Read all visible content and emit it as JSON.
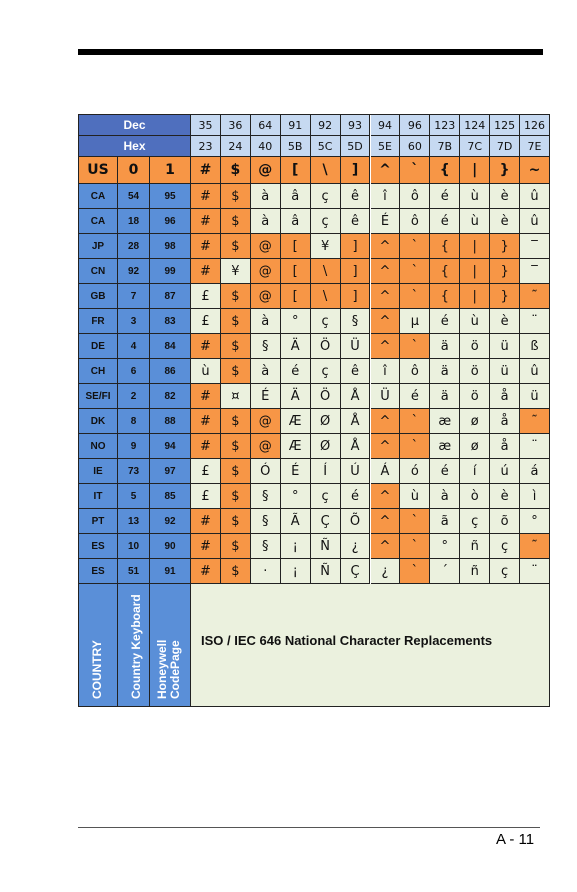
{
  "header": {
    "dec_label": "Dec",
    "hex_label": "Hex",
    "dec": [
      35,
      36,
      64,
      91,
      92,
      93,
      94,
      96,
      123,
      124,
      125,
      126
    ],
    "hex": [
      "23",
      "24",
      "40",
      "5B",
      "5C",
      "5D",
      "5E",
      "60",
      "7B",
      "7C",
      "7D",
      "7E"
    ]
  },
  "table": {
    "rows": [
      {
        "cells": [
          "US",
          "0",
          "1",
          "#",
          "$",
          "@",
          "[",
          "\\",
          "]",
          "^",
          "`",
          "{",
          "|",
          "}",
          "~"
        ],
        "highlighted": [
          0,
          1,
          2,
          3,
          4,
          5,
          6,
          7,
          8,
          9,
          10,
          11,
          12,
          13,
          14
        ]
      },
      {
        "cells": [
          "CA",
          "54",
          "95",
          "#",
          "$",
          "à",
          "â",
          "ç",
          "ê",
          "î",
          "ô",
          "é",
          "ù",
          "è",
          "û"
        ],
        "highlighted": [
          3,
          4
        ]
      },
      {
        "cells": [
          "CA",
          "18",
          "96",
          "#",
          "$",
          "à",
          "â",
          "ç",
          "ê",
          "É",
          "ô",
          "é",
          "ù",
          "è",
          "û"
        ],
        "highlighted": [
          3,
          4
        ]
      },
      {
        "cells": [
          "JP",
          "28",
          "98",
          "#",
          "$",
          "@",
          "[",
          "¥",
          "]",
          "^",
          "`",
          "{",
          "|",
          "}",
          "‾"
        ],
        "highlighted": [
          3,
          4,
          5,
          6,
          8,
          9,
          10,
          11,
          12,
          13
        ]
      },
      {
        "cells": [
          "CN",
          "92",
          "99",
          "#",
          "¥",
          "@",
          "[",
          "\\",
          "]",
          "^",
          "`",
          "{",
          "|",
          "}",
          "‾"
        ],
        "highlighted": [
          3,
          5,
          6,
          7,
          8,
          9,
          10,
          11,
          12,
          13
        ]
      },
      {
        "cells": [
          "GB",
          "7",
          "87",
          "£",
          "$",
          "@",
          "[",
          "\\",
          "]",
          "^",
          "`",
          "{",
          "|",
          "}",
          "˜"
        ],
        "highlighted": [
          4,
          5,
          6,
          7,
          8,
          9,
          10,
          11,
          12,
          13,
          14
        ]
      },
      {
        "cells": [
          "FR",
          "3",
          "83",
          "£",
          "$",
          "à",
          "°",
          "ç",
          "§",
          "^",
          "µ",
          "é",
          "ù",
          "è",
          "¨"
        ],
        "highlighted": [
          4,
          9
        ]
      },
      {
        "cells": [
          "DE",
          "4",
          "84",
          "#",
          "$",
          "§",
          "Ä",
          "Ö",
          "Ü",
          "^",
          "`",
          "ä",
          "ö",
          "ü",
          "ß"
        ],
        "highlighted": [
          3,
          4,
          9,
          10
        ]
      },
      {
        "cells": [
          "CH",
          "6",
          "86",
          "ù",
          "$",
          "à",
          "é",
          "ç",
          "ê",
          "î",
          "ô",
          "ä",
          "ö",
          "ü",
          "û"
        ],
        "highlighted": [
          4
        ]
      },
      {
        "cells": [
          "SE/FI",
          "2",
          "82",
          "#",
          "¤",
          "É",
          "Ä",
          "Ö",
          "Å",
          "Ü",
          "é",
          "ä",
          "ö",
          "å",
          "ü"
        ],
        "highlighted": [
          3
        ]
      },
      {
        "cells": [
          "DK",
          "8",
          "88",
          "#",
          "$",
          "@",
          "Æ",
          "Ø",
          "Å",
          "^",
          "`",
          "æ",
          "ø",
          "å",
          "˜"
        ],
        "highlighted": [
          3,
          4,
          5,
          9,
          10,
          14
        ]
      },
      {
        "cells": [
          "NO",
          "9",
          "94",
          "#",
          "$",
          "@",
          "Æ",
          "Ø",
          "Å",
          "^",
          "`",
          "æ",
          "ø",
          "å",
          "¨"
        ],
        "highlighted": [
          3,
          4,
          5,
          9,
          10
        ]
      },
      {
        "cells": [
          "IE",
          "73",
          "97",
          "£",
          "$",
          "Ó",
          "É",
          "Í",
          "Ú",
          "Á",
          "ó",
          "é",
          "í",
          "ú",
          "á"
        ],
        "highlighted": [
          4
        ]
      },
      {
        "cells": [
          "IT",
          "5",
          "85",
          "£",
          "$",
          "§",
          "°",
          "ç",
          "é",
          "^",
          "ù",
          "à",
          "ò",
          "è",
          "ì"
        ],
        "highlighted": [
          4,
          9
        ]
      },
      {
        "cells": [
          "PT",
          "13",
          "92",
          "#",
          "$",
          "§",
          "Ã",
          "Ç",
          "Õ",
          "^",
          "`",
          "ã",
          "ç",
          "õ",
          "°"
        ],
        "highlighted": [
          3,
          4,
          9,
          10
        ]
      },
      {
        "cells": [
          "ES",
          "10",
          "90",
          "#",
          "$",
          "§",
          "¡",
          "Ñ",
          "¿",
          "^",
          "`",
          "°",
          "ñ",
          "ç",
          "˜"
        ],
        "highlighted": [
          3,
          4,
          9,
          10,
          14
        ]
      },
      {
        "cells": [
          "ES",
          "51",
          "91",
          "#",
          "$",
          "·",
          "¡",
          "Ñ",
          "Ç",
          "¿",
          "`",
          "´",
          "ñ",
          "ç",
          "¨"
        ],
        "highlighted": [
          3,
          4,
          10
        ]
      }
    ]
  },
  "footer": {
    "labels": [
      "COUNTRY",
      "Country Keyboard",
      "Honeywell CodePage"
    ],
    "caption": "ISO / IEC 646 National Character Replacements"
  },
  "page_number": "A - 11"
}
